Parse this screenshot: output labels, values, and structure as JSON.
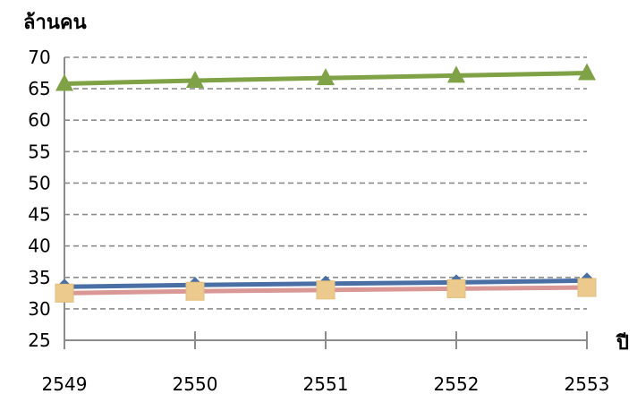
{
  "chart_data": {
    "type": "line",
    "title": "",
    "ylabel": "ล้านคน",
    "xlabel": "ปี",
    "categories": [
      "2549",
      "2550",
      "2551",
      "2552",
      "2553"
    ],
    "yticks": [
      "25",
      "30",
      "35",
      "40",
      "45",
      "50",
      "55",
      "60",
      "65",
      "70"
    ],
    "ylim": [
      25,
      70
    ],
    "grid": true,
    "legend": "none",
    "series": [
      {
        "values": [
          33.5,
          33.8,
          34.0,
          34.2,
          34.5
        ],
        "color": "#4a6fa5",
        "marker": "diamond"
      },
      {
        "values": [
          32.5,
          32.8,
          33.0,
          33.2,
          33.4
        ],
        "color": "#d99795",
        "marker": "square",
        "marker_color": "#ecca8e"
      },
      {
        "values": [
          65.8,
          66.3,
          66.7,
          67.1,
          67.5
        ],
        "color": "#7fa246",
        "marker": "triangle"
      }
    ]
  }
}
